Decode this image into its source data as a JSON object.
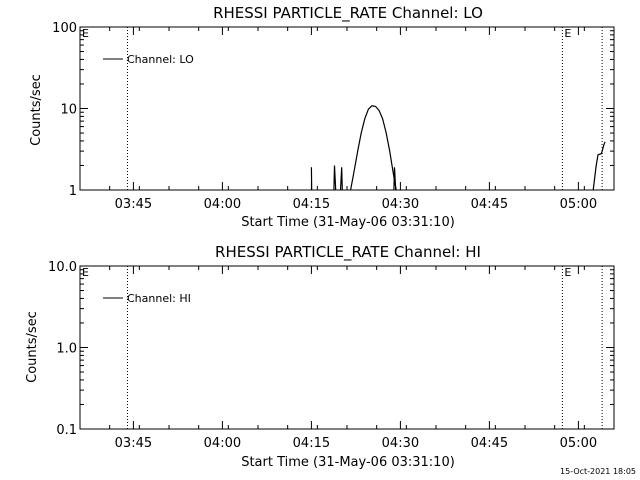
{
  "chart_data": [
    {
      "type": "line",
      "title": "RHESSI PARTICLE_RATE Channel: LO",
      "xlabel": "Start Time (31-May-06 03:31:10)",
      "ylabel": "Counts/sec",
      "yscale": "log",
      "ylim": [
        1,
        100
      ],
      "ytick_labels": [
        "1",
        "10",
        "100"
      ],
      "ytick_values": [
        1,
        10,
        100
      ],
      "xlim": [
        5,
        95
      ],
      "xtick_labels": [
        "03:45",
        "04:00",
        "04:15",
        "04:30",
        "04:45",
        "05:00"
      ],
      "xtick_values": [
        14,
        29,
        44,
        59,
        74,
        89
      ],
      "legend": {
        "position": "top-left",
        "entries": [
          "Channel: LO"
        ]
      },
      "markers": [
        {
          "x": 13.0,
          "label": ""
        },
        {
          "x": 86.3,
          "label": "E"
        },
        {
          "x": 93.0,
          "label": ""
        }
      ],
      "corner_label": "E",
      "series": [
        {
          "name": "Channel: LO",
          "segments": [
            [
              [
                44.0,
                1.9
              ],
              [
                44.05,
                1.0
              ]
            ],
            [
              [
                47.8,
                1.0
              ],
              [
                47.9,
                2.0
              ],
              [
                48.1,
                1.0
              ]
            ],
            [
              [
                48.9,
                1.0
              ],
              [
                49.1,
                1.9
              ],
              [
                49.2,
                1.0
              ]
            ],
            [
              [
                50.6,
                1.0
              ],
              [
                51.2,
                1.7
              ],
              [
                51.8,
                3.0
              ],
              [
                52.4,
                5.0
              ],
              [
                53.0,
                7.5
              ],
              [
                53.6,
                9.8
              ],
              [
                54.2,
                10.8
              ],
              [
                54.8,
                10.6
              ],
              [
                55.4,
                9.5
              ],
              [
                56.0,
                7.5
              ],
              [
                56.6,
                5.0
              ],
              [
                57.2,
                3.0
              ],
              [
                57.8,
                1.6
              ],
              [
                58.3,
                1.0
              ]
            ],
            [
              [
                57.9,
                1.0
              ],
              [
                58.0,
                1.9
              ],
              [
                58.2,
                1.0
              ]
            ],
            [
              [
                91.5,
                1.0
              ],
              [
                92.0,
                2.0
              ],
              [
                92.3,
                2.7
              ],
              [
                92.9,
                2.8
              ],
              [
                93.3,
                3.6
              ],
              [
                93.5,
                3.9
              ]
            ]
          ]
        }
      ]
    },
    {
      "type": "line",
      "title": "RHESSI PARTICLE_RATE Channel: HI",
      "xlabel": "Start Time (31-May-06 03:31:10)",
      "ylabel": "Counts/sec",
      "yscale": "log",
      "ylim": [
        0.1,
        10
      ],
      "ytick_labels": [
        "0.1",
        "1.0",
        "10.0"
      ],
      "ytick_values": [
        0.1,
        1,
        10
      ],
      "xlim": [
        5,
        95
      ],
      "xtick_labels": [
        "03:45",
        "04:00",
        "04:15",
        "04:30",
        "04:45",
        "05:00"
      ],
      "xtick_values": [
        14,
        29,
        44,
        59,
        74,
        89
      ],
      "legend": {
        "position": "top-left",
        "entries": [
          "Channel: HI"
        ]
      },
      "markers": [
        {
          "x": 13.0,
          "label": ""
        },
        {
          "x": 86.3,
          "label": "E"
        },
        {
          "x": 93.0,
          "label": ""
        }
      ],
      "corner_label": "E",
      "series": [
        {
          "name": "Channel: HI",
          "segments": []
        }
      ]
    }
  ],
  "footer": {
    "timestamp": "15-Oct-2021 18:05"
  }
}
